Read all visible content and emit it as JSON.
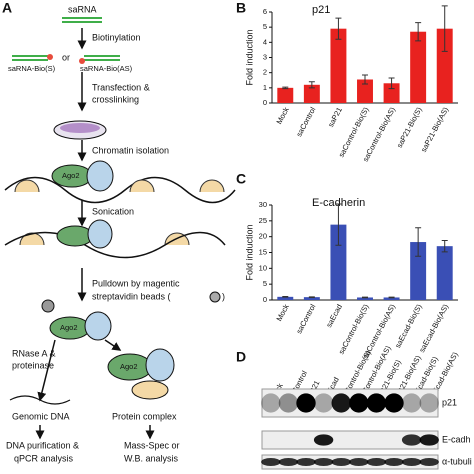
{
  "panel_labels": [
    "A",
    "B",
    "C",
    "D"
  ],
  "diagram": {
    "labels": [
      "saRNA",
      "Biotinylation",
      "saRNA-Bio(S)",
      "or",
      "saRNA-Bio(AS)",
      "Transfection &",
      "crosslinking",
      "Chromatin isolation",
      "Ago2",
      "Sonication",
      "Pulldown by magentic",
      "streptavidin beads (",
      ")",
      "Ago2",
      "RNase A &",
      "proteinase",
      "Ago2",
      "Genomic DNA",
      "Protein complex",
      "DNA purification &",
      "qPCR analysis",
      "Mass-Spec or",
      "W.B. analysis"
    ]
  },
  "chart_data": [
    {
      "type": "bar",
      "title": "p21",
      "ylabel": "Fold induction",
      "color": "#e8221f",
      "categories": [
        "Mock",
        "saControl",
        "saP21",
        "saControl-Bio(S)",
        "saControl-Bio(AS)",
        "saP21-Bio(S)",
        "saP21-Bio(AS)"
      ],
      "values": [
        1,
        1.2,
        4.9,
        1.55,
        1.3,
        4.7,
        4.9
      ],
      "errors": [
        0.05,
        0.2,
        0.7,
        0.3,
        0.35,
        0.6,
        1.5
      ],
      "ylim": [
        0,
        6
      ],
      "yticks": [
        0,
        1,
        2,
        3,
        4,
        5,
        6
      ]
    },
    {
      "type": "bar",
      "title": "E-cadherin",
      "ylabel": "Fold induction",
      "color": "#3a4fb5",
      "categories": [
        "Mock",
        "saControl",
        "saEcad",
        "saControl-Bio(S)",
        "saControl-Bio(AS)",
        "saEcad-Bio(S)",
        "saEcad-Bio(AS)"
      ],
      "values": [
        1,
        0.9,
        23.8,
        0.8,
        0.8,
        18.3,
        17
      ],
      "errors": [
        0.1,
        0.1,
        6.5,
        0.1,
        0.1,
        4.5,
        1.8
      ],
      "ylim": [
        0,
        30
      ],
      "yticks": [
        0,
        5,
        10,
        15,
        20,
        25,
        30
      ]
    }
  ],
  "blot": {
    "lanes": [
      "Mock",
      "saControl",
      "saP21",
      "saEcad",
      "saControl-Bio(S)",
      "saControl-Bio(AS)",
      "saP21-Bio(S)",
      "saP21-Bio(AS)",
      "saEcad-Bio(S)",
      "saEcad-Bio(AS)"
    ],
    "rows": [
      "p21",
      "E-cadh",
      "α-tubuli"
    ]
  }
}
